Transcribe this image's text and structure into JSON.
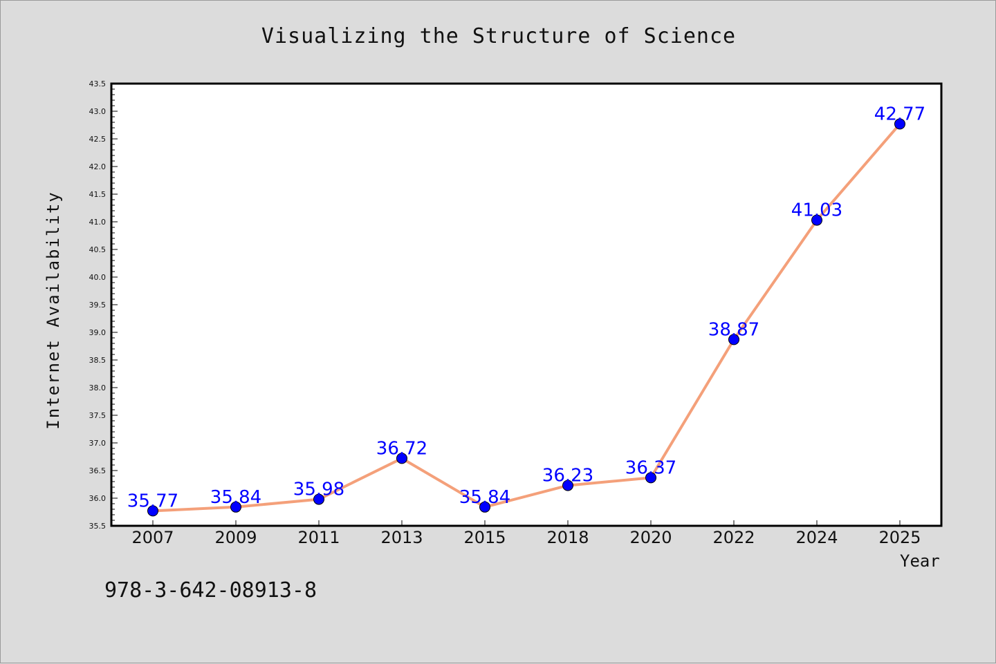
{
  "chart_data": {
    "type": "line",
    "title": "Visualizing the Structure of Science",
    "xlabel": "Year",
    "ylabel": "Internet Availability",
    "categories": [
      "2007",
      "2009",
      "2011",
      "2013",
      "2015",
      "2018",
      "2020",
      "2022",
      "2024",
      "2025"
    ],
    "series": [
      {
        "values": [
          35.77,
          35.84,
          35.98,
          36.72,
          35.84,
          36.23,
          36.37,
          38.87,
          41.03,
          42.77
        ],
        "data_labels": [
          "35.77",
          "35.84",
          "35.98",
          "36.72",
          "35.84",
          "36.23",
          "36.37",
          "38.87",
          "41.03",
          "42.77"
        ],
        "line_color": "#f4a07a",
        "marker_color": "#0000ff"
      }
    ],
    "ylim": [
      35.5,
      43.5
    ],
    "yticks": [
      "35.5",
      "36.0",
      "36.5",
      "37.0",
      "37.5",
      "38.0",
      "38.5",
      "39.0",
      "39.5",
      "40.0",
      "40.5",
      "41.0",
      "41.5",
      "42.0",
      "42.5",
      "43.0",
      "43.5"
    ],
    "grid": false,
    "legend": "none"
  },
  "annotation": {
    "isbn": "978-3-642-08913-8"
  },
  "colors": {
    "background": "#dcdcdc",
    "plot_background": "#ffffff",
    "line": "#f4a07a",
    "marker": "#0000ff",
    "data_label": "#0000ff"
  }
}
